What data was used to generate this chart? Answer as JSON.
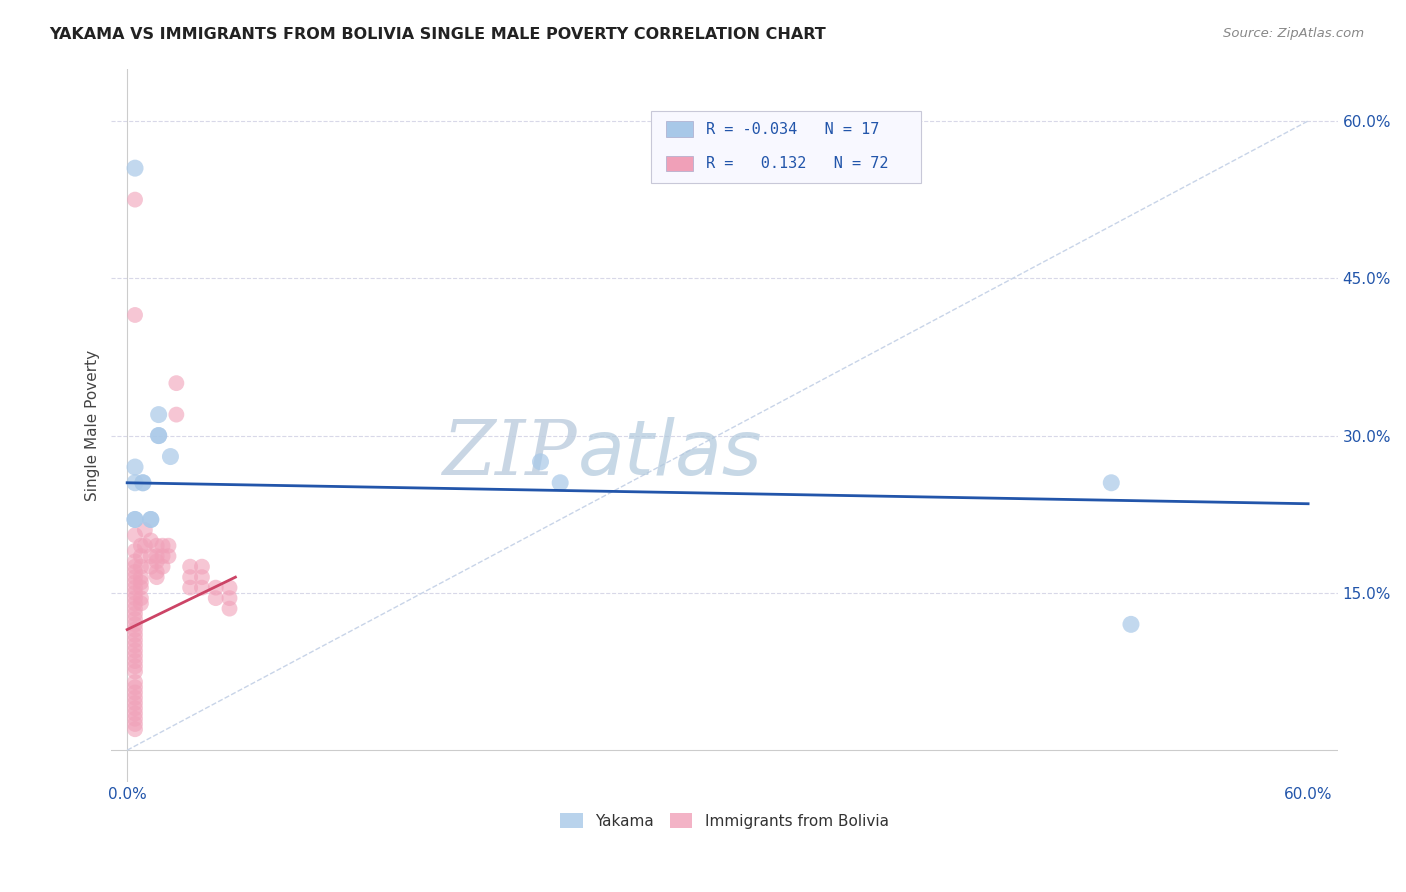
{
  "title": "YAKAMA VS IMMIGRANTS FROM BOLIVIA SINGLE MALE POVERTY CORRELATION CHART",
  "source": "Source: ZipAtlas.com",
  "ylabel": "Single Male Poverty",
  "ytick_labels": [
    "15.0%",
    "30.0%",
    "45.0%",
    "60.0%"
  ],
  "ytick_values": [
    0.15,
    0.3,
    0.45,
    0.6
  ],
  "xlim": [
    0.0,
    0.6
  ],
  "ylim": [
    0.0,
    0.65
  ],
  "yakama_color": "#a8c8e8",
  "bolivia_color": "#f0a0b8",
  "diagonal_color": "#c8d4e8",
  "blue_line_color": "#2255aa",
  "pink_line_color": "#cc4466",
  "watermark_zip_color": "#c8d4e8",
  "watermark_atlas_color": "#b0c4d8",
  "legend_border_color": "#c8c8d8",
  "legend_bg_color": "#f8f8ff",
  "legend_blue_sq": "#a8c8e8",
  "legend_pink_sq": "#f0a0b8",
  "legend_text_color": "#2255aa",
  "legend_label_color": "#333333",
  "title_color": "#222222",
  "axis_color": "#2255aa",
  "ylabel_color": "#444444",
  "grid_color": "#d8d8e8",
  "yakama_x": [
    0.004,
    0.004,
    0.004,
    0.004,
    0.004,
    0.008,
    0.008,
    0.012,
    0.012,
    0.016,
    0.016,
    0.016,
    0.022,
    0.21,
    0.22,
    0.5,
    0.51
  ],
  "yakama_y": [
    0.555,
    0.27,
    0.255,
    0.22,
    0.22,
    0.255,
    0.255,
    0.22,
    0.22,
    0.32,
    0.3,
    0.3,
    0.28,
    0.275,
    0.255,
    0.255,
    0.12
  ],
  "bolivia_x": [
    0.004,
    0.004,
    0.004,
    0.004,
    0.004,
    0.004,
    0.004,
    0.004,
    0.004,
    0.004,
    0.004,
    0.004,
    0.004,
    0.004,
    0.004,
    0.004,
    0.004,
    0.004,
    0.004,
    0.004,
    0.004,
    0.004,
    0.004,
    0.004,
    0.004,
    0.004,
    0.004,
    0.004,
    0.004,
    0.004,
    0.004,
    0.004,
    0.004,
    0.004,
    0.004,
    0.004,
    0.007,
    0.007,
    0.007,
    0.007,
    0.007,
    0.007,
    0.007,
    0.007,
    0.009,
    0.009,
    0.012,
    0.012,
    0.012,
    0.015,
    0.015,
    0.015,
    0.015,
    0.015,
    0.018,
    0.018,
    0.018,
    0.021,
    0.021,
    0.025,
    0.025,
    0.032,
    0.032,
    0.032,
    0.038,
    0.038,
    0.038,
    0.045,
    0.045,
    0.052,
    0.052,
    0.052
  ],
  "bolivia_y": [
    0.525,
    0.415,
    0.205,
    0.19,
    0.18,
    0.175,
    0.17,
    0.165,
    0.16,
    0.155,
    0.15,
    0.145,
    0.14,
    0.135,
    0.13,
    0.125,
    0.12,
    0.115,
    0.11,
    0.105,
    0.1,
    0.095,
    0.09,
    0.085,
    0.08,
    0.075,
    0.065,
    0.06,
    0.055,
    0.05,
    0.045,
    0.04,
    0.035,
    0.03,
    0.025,
    0.02,
    0.195,
    0.185,
    0.175,
    0.165,
    0.16,
    0.155,
    0.145,
    0.14,
    0.21,
    0.195,
    0.2,
    0.185,
    0.175,
    0.195,
    0.185,
    0.18,
    0.17,
    0.165,
    0.195,
    0.185,
    0.175,
    0.195,
    0.185,
    0.35,
    0.32,
    0.175,
    0.165,
    0.155,
    0.175,
    0.165,
    0.155,
    0.155,
    0.145,
    0.155,
    0.145,
    0.135
  ],
  "blue_line_x": [
    0.0,
    0.6
  ],
  "blue_line_y": [
    0.255,
    0.235
  ],
  "pink_line_x": [
    0.0,
    0.055
  ],
  "pink_line_y": [
    0.115,
    0.165
  ]
}
